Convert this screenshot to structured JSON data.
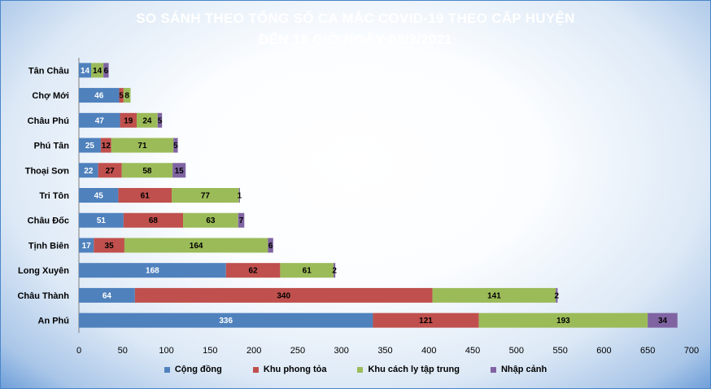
{
  "title_line1": "SO SÁNH THEO TỔNG SỐ CA MẮC COVID-19 THEO CẤP HUYỆN",
  "title_line2": "ĐẾN 18 GIỜ NGÀY 08/9/2021",
  "colors": {
    "Cộng đồng": "#4f81bd",
    "Khu phong tỏa": "#c0504d",
    "Khu cách ly tập trung": "#9bbb59",
    "Nhập cảnh": "#8064a2"
  },
  "chart_data": {
    "type": "bar",
    "orientation": "horizontal",
    "stacked": true,
    "categories": [
      "Tân Châu",
      "Chợ Mới",
      "Châu Phú",
      "Phú Tân",
      "Thoại Sơn",
      "Tri Tôn",
      "Châu Đốc",
      "Tịnh Biên",
      "Long Xuyên",
      "Châu Thành",
      "An Phú"
    ],
    "series": [
      {
        "name": "Cộng đồng",
        "values": [
          14,
          46,
          47,
          25,
          22,
          45,
          51,
          17,
          168,
          64,
          336
        ]
      },
      {
        "name": "Khu phong tỏa",
        "values": [
          null,
          5,
          19,
          12,
          27,
          61,
          68,
          35,
          62,
          340,
          121
        ]
      },
      {
        "name": "Khu cách ly tập trung",
        "values": [
          14,
          8,
          24,
          71,
          58,
          77,
          63,
          164,
          61,
          141,
          193
        ]
      },
      {
        "name": "Nhập cảnh",
        "values": [
          6,
          null,
          5,
          5,
          15,
          1,
          7,
          6,
          2,
          2,
          34
        ]
      }
    ],
    "xlim": [
      0,
      700
    ],
    "xticks": [
      0,
      50,
      100,
      150,
      200,
      250,
      300,
      350,
      400,
      450,
      500,
      550,
      600,
      650,
      700
    ],
    "legend_position": "bottom"
  }
}
